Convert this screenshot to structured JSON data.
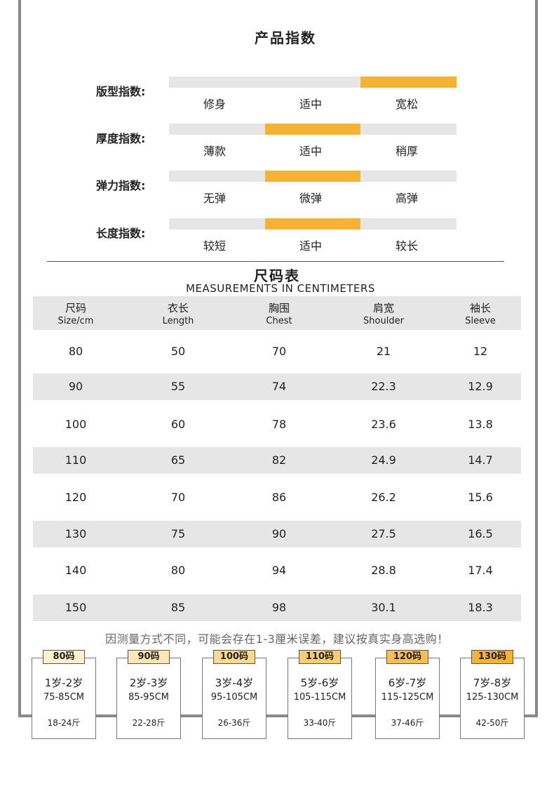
{
  "title": "产品指数",
  "colors": {
    "accent": "#f5b335",
    "track": "#e6e6e6",
    "frame": "#888888"
  },
  "indices": [
    {
      "label": "版型指数:",
      "options": [
        "修身",
        "适中",
        "宽松"
      ],
      "selected_index": 2
    },
    {
      "label": "厚度指数:",
      "options": [
        "薄款",
        "适中",
        "稍厚"
      ],
      "selected_index": 1
    },
    {
      "label": "弹力指数:",
      "options": [
        "无弹",
        "微弹",
        "高弹"
      ],
      "selected_index": 1
    },
    {
      "label": "长度指数:",
      "options": [
        "较短",
        "适中",
        "较长"
      ],
      "selected_index": 1
    }
  ],
  "size_chart": {
    "title": "尺码表",
    "subtitle": "MEASUREMENTS IN CENTIMETERS",
    "headers": [
      {
        "zh": "尺码",
        "en": "Size/cm"
      },
      {
        "zh": "衣长",
        "en": "Length"
      },
      {
        "zh": "胸围",
        "en": "Chest"
      },
      {
        "zh": "肩宽",
        "en": "Shoulder"
      },
      {
        "zh": "袖长",
        "en": "Sleeve"
      }
    ],
    "rows": [
      [
        "80",
        "50",
        "70",
        "21",
        "12"
      ],
      [
        "90",
        "55",
        "74",
        "22.3",
        "12.9"
      ],
      [
        "100",
        "60",
        "78",
        "23.6",
        "13.8"
      ],
      [
        "110",
        "65",
        "82",
        "24.9",
        "14.7"
      ],
      [
        "120",
        "70",
        "86",
        "26.2",
        "15.6"
      ],
      [
        "130",
        "75",
        "90",
        "27.5",
        "16.5"
      ],
      [
        "140",
        "80",
        "94",
        "28.8",
        "17.4"
      ],
      [
        "150",
        "85",
        "98",
        "30.1",
        "18.3"
      ]
    ]
  },
  "note": "因测量方式不同，可能会存在1-3厘米误差，建议按真实身高选购！",
  "size_cards": [
    {
      "tag": "80码",
      "tag_color": "#fdf0cf",
      "age": "1岁-2岁",
      "height": "75-85CM",
      "weight": "18-24斤"
    },
    {
      "tag": "90码",
      "tag_color": "#fce6b3",
      "age": "2岁-3岁",
      "height": "85-95CM",
      "weight": "22-28斤"
    },
    {
      "tag": "100码",
      "tag_color": "#fbda8f",
      "age": "3岁-4岁",
      "height": "95-105CM",
      "weight": "26-36斤"
    },
    {
      "tag": "110码",
      "tag_color": "#f9cd72",
      "age": "5岁-6岁",
      "height": "105-115CM",
      "weight": "33-40斤"
    },
    {
      "tag": "120码",
      "tag_color": "#f7bf4f",
      "age": "6岁-7岁",
      "height": "115-125CM",
      "weight": "37-46斤"
    },
    {
      "tag": "130码",
      "tag_color": "#f5b335",
      "age": "7岁-8岁",
      "height": "125-130CM",
      "weight": "42-50斤"
    }
  ]
}
